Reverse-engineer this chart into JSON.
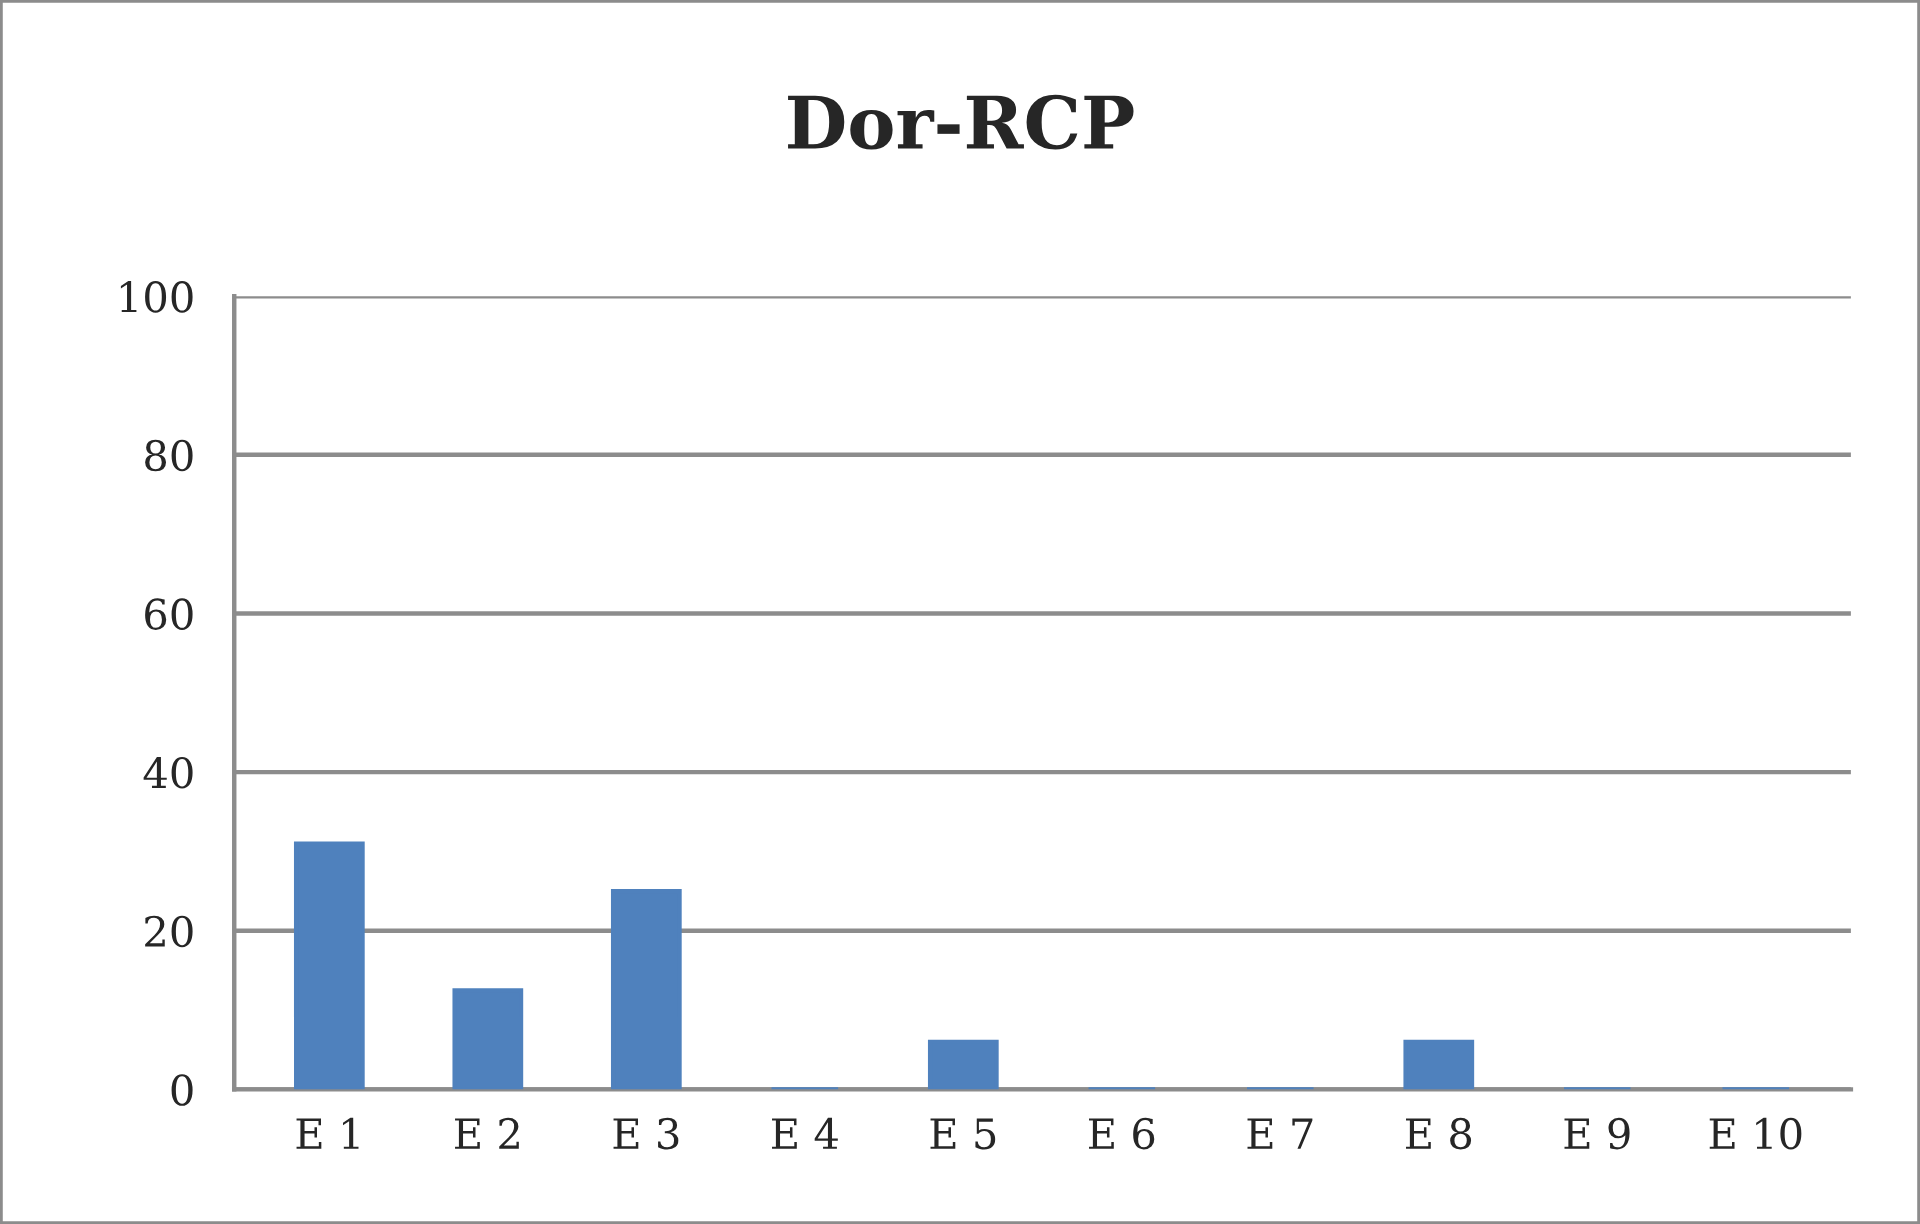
{
  "chart_data": {
    "type": "bar",
    "title": "Dor-RCP",
    "categories": [
      "E 1",
      "E 2",
      "E 3",
      "E 4",
      "E 5",
      "E 6",
      "E 7",
      "E 8",
      "E 9",
      "E 10"
    ],
    "values": [
      31,
      12.5,
      25,
      0,
      6,
      0,
      0,
      6,
      0,
      0
    ],
    "color": "#4f81bd",
    "ylim": [
      0,
      100
    ],
    "yticks": [
      0,
      20,
      40,
      60,
      80,
      100
    ],
    "grid": "y"
  }
}
